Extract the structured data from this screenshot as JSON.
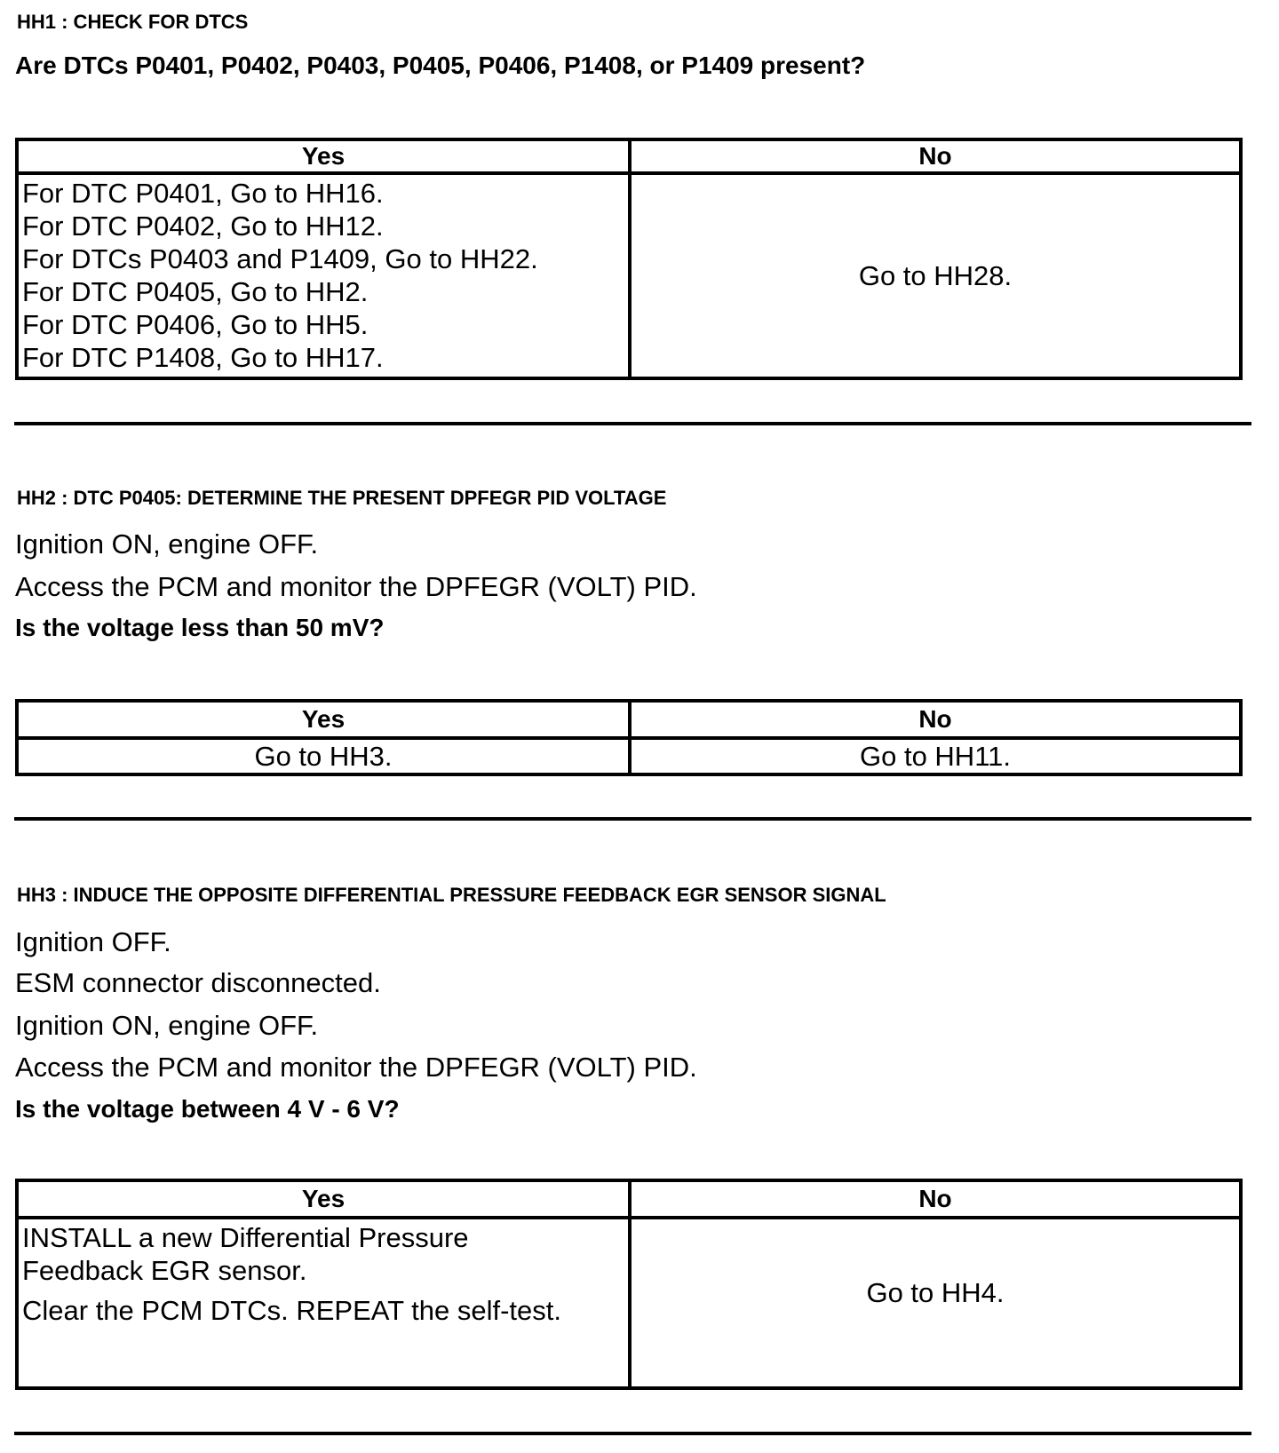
{
  "steps": [
    {
      "title": "HH1 : CHECK FOR DTCS",
      "instructions": [],
      "question": "Are DTCs P0401, P0402, P0403, P0405, P0406, P1408, or P1409 present?",
      "table": {
        "yes_header": "Yes",
        "no_header": "No",
        "yes_lines": [
          "For DTC P0401, Go to HH16.",
          "For DTC P0402, Go to HH12.",
          "For DTCs P0403 and P1409, Go to HH22.",
          "For DTC P0405, Go to HH2.",
          "For DTC P0406, Go to HH5.",
          "For DTC P1408, Go to HH17."
        ],
        "no_lines": [
          "Go to HH28."
        ]
      }
    },
    {
      "title": "HH2 : DTC P0405: DETERMINE THE PRESENT DPFEGR PID VOLTAGE",
      "instructions": [
        "Ignition ON, engine OFF.",
        "Access the PCM and monitor the  DPFEGR (VOLT) PID."
      ],
      "question": "Is the voltage less than 50 mV?",
      "table": {
        "yes_header": "Yes",
        "no_header": "No",
        "yes_lines": [
          "Go to HH3."
        ],
        "no_lines": [
          "Go to HH11."
        ]
      }
    },
    {
      "title": "HH3 : INDUCE THE OPPOSITE DIFFERENTIAL PRESSURE FEEDBACK EGR SENSOR SIGNAL",
      "instructions": [
        "Ignition OFF.",
        "ESM connector disconnected.",
        "Ignition ON, engine OFF.",
        "Access the PCM and monitor the  DPFEGR (VOLT) PID."
      ],
      "question": "Is the voltage between 4 V - 6 V?",
      "table": {
        "yes_header": "Yes",
        "no_header": "No",
        "yes_lines": [
          "INSTALL a new Differential Pressure",
          "Feedback EGR sensor.",
          "Clear the PCM DTCs. REPEAT the self-test."
        ],
        "no_lines": [
          "Go to HH4."
        ]
      }
    }
  ]
}
